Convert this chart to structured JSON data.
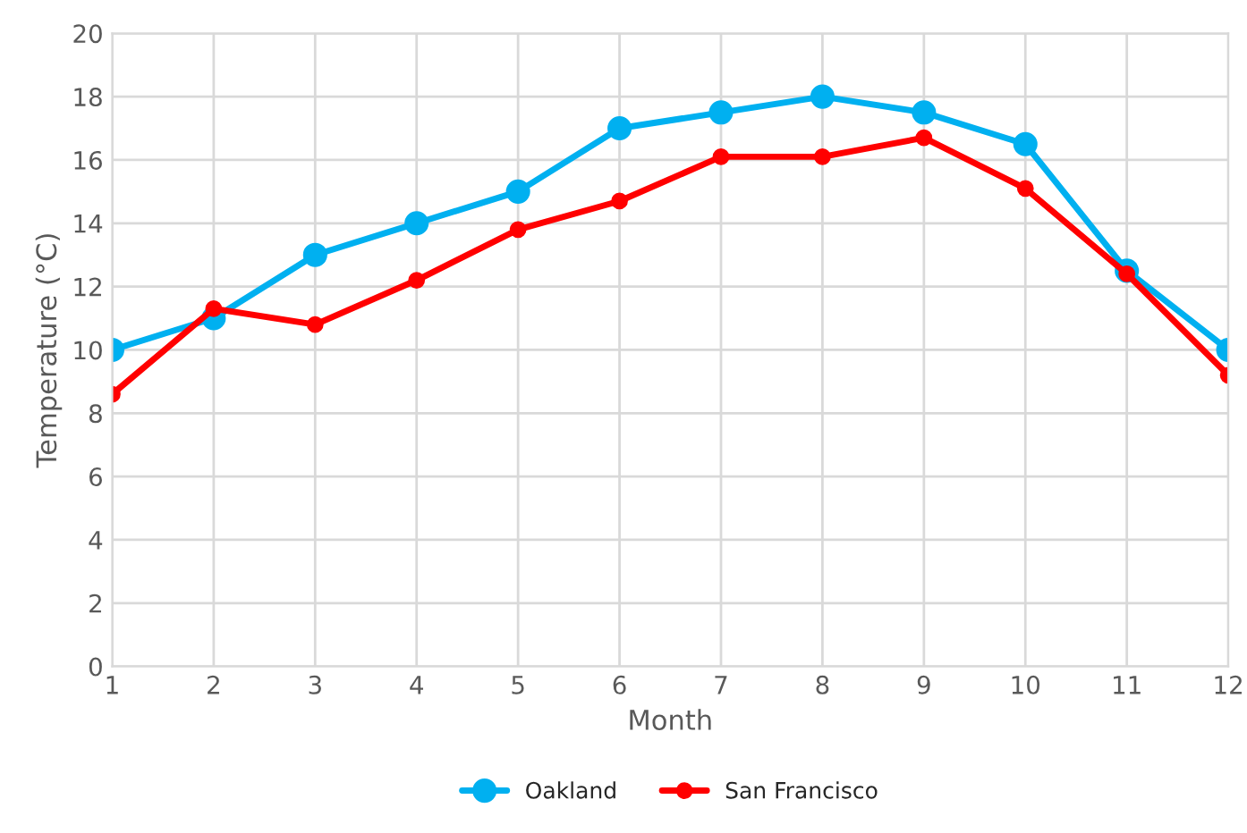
{
  "chart_data": {
    "type": "line",
    "xlabel": "Month",
    "ylabel": "Temperature (°C)",
    "x": [
      1,
      2,
      3,
      4,
      5,
      6,
      7,
      8,
      9,
      10,
      11,
      12
    ],
    "series": [
      {
        "name": "Oakland",
        "color": "#00b0f0",
        "values": [
          10,
          11,
          13,
          14,
          15,
          17,
          17.5,
          18,
          17.5,
          16.5,
          12.5,
          10
        ]
      },
      {
        "name": "San Francisco",
        "color": "#ff0000",
        "values": [
          8.6,
          11.3,
          10.8,
          12.2,
          13.8,
          14.7,
          16.1,
          16.1,
          16.7,
          15.1,
          12.4,
          9.2
        ]
      }
    ],
    "xlim": [
      1,
      12
    ],
    "xticks": [
      1,
      2,
      3,
      4,
      5,
      6,
      7,
      8,
      9,
      10,
      11,
      12
    ],
    "ylim": [
      0,
      20
    ],
    "yticks": [
      0,
      2,
      4,
      6,
      8,
      10,
      12,
      14,
      16,
      18,
      20
    ],
    "grid": true,
    "legend": "bottom",
    "marker": "circle",
    "line_style": "solid"
  }
}
